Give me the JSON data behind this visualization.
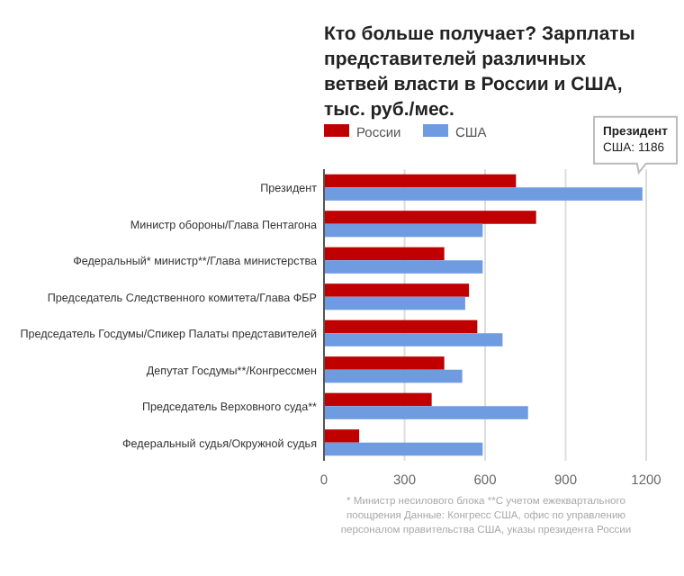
{
  "chart_data": {
    "type": "bar",
    "orientation": "horizontal",
    "title": "Кто больше получает? Зарплаты представителей различных ветвей власти в России и США, тыс. руб./мес.",
    "categories": [
      "Президент",
      "Министр обороны/Глава Пентагона",
      "Федеральный* министр**/Глава министерства",
      "Председатель Следственного комитета/Глава ФБР",
      "Председатель Госдумы/Спикер Палаты представителей",
      "Депутат Госдумы**/Конгрессмен",
      "Председатель Верховного суда**",
      "Федеральный судья/Окружной судья"
    ],
    "series": [
      {
        "name": "России",
        "color": "#c00000",
        "values": [
          715,
          790,
          448,
          540,
          571,
          448,
          401,
          131
        ]
      },
      {
        "name": "США",
        "color": "#6f9ce0",
        "values": [
          1186,
          591,
          591,
          526,
          665,
          515,
          760,
          591
        ]
      }
    ],
    "xlim": [
      0,
      1200
    ],
    "xticks": [
      0,
      300,
      600,
      900,
      1200
    ],
    "grid": "x",
    "legend": "top left",
    "annotations": [
      {
        "text": "Президент\nСША: 1186",
        "x": 1186,
        "y": "Президент"
      },
      "* Министр несилового блока **С учетом ежеквартального поощрения Данные: Конгресс США, офис по управлению персоналом правительства США, указы президента России"
    ]
  }
}
